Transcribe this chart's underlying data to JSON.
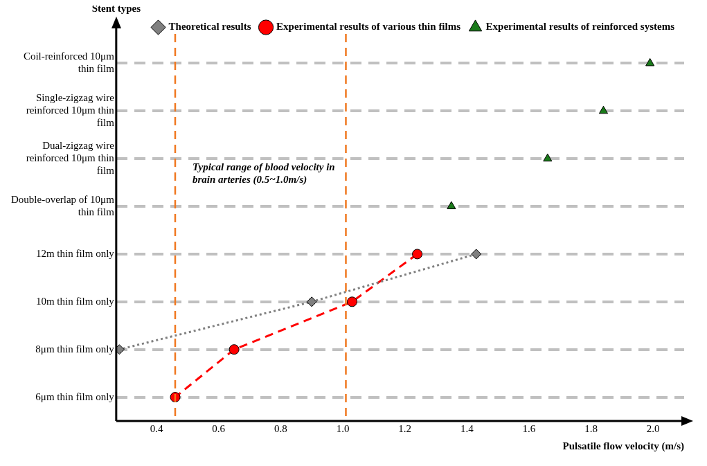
{
  "chart_data": {
    "type": "scatter",
    "orientation": "horizontal",
    "xlabel": "Pulsatile flow velocity (m/s)",
    "ylabel": "Stent types",
    "categories": [
      "Coil-reinforced 10μm thin film",
      "Single-zigzag wire reinforced 10μm thin film",
      "Dual-zigzag wire reinforced 10μm thin film",
      "Double-overlap of 10μm thin film",
      "12m thin film only",
      "10m thin film only",
      "8μm thin film only",
      "6μm thin film only"
    ],
    "series": [
      {
        "name": "Theoretical results",
        "type": "line",
        "color": "#808080",
        "marker": "diamond",
        "line_style": "dotted",
        "values": [
          null,
          null,
          null,
          null,
          1.43,
          0.9,
          0.28,
          null
        ]
      },
      {
        "name": "Experimental results of various thin films",
        "type": "line",
        "color": "#ff0000",
        "marker": "circle",
        "line_style": "dashed",
        "values": [
          null,
          null,
          null,
          null,
          1.24,
          1.03,
          0.65,
          0.46
        ]
      },
      {
        "name": "Experimental results of reinforced systems",
        "type": "scatter",
        "color": "#1a7a1a",
        "marker": "triangle",
        "values": [
          1.99,
          1.84,
          1.66,
          1.35,
          null,
          null,
          null,
          null
        ]
      }
    ],
    "xlim": [
      0.27,
      2.1
    ],
    "xticks": [
      0.4,
      0.6,
      0.8,
      {
        "value": 1,
        "label": "1.0"
      },
      1.2,
      1.4,
      1.6,
      1.8,
      {
        "value": 2,
        "label": "2.0"
      }
    ],
    "ref_lines": [
      {
        "axis": "x",
        "value": 0.46,
        "color": "#f07820",
        "line_style": "dashed"
      },
      {
        "axis": "x",
        "value": 1.01,
        "color": "#f07820",
        "line_style": "dashed"
      }
    ],
    "annotations": [
      "Typical range of blood velocity in brain arteries (0.5~1.0m/s)"
    ],
    "grid": "y",
    "legend": "top"
  }
}
